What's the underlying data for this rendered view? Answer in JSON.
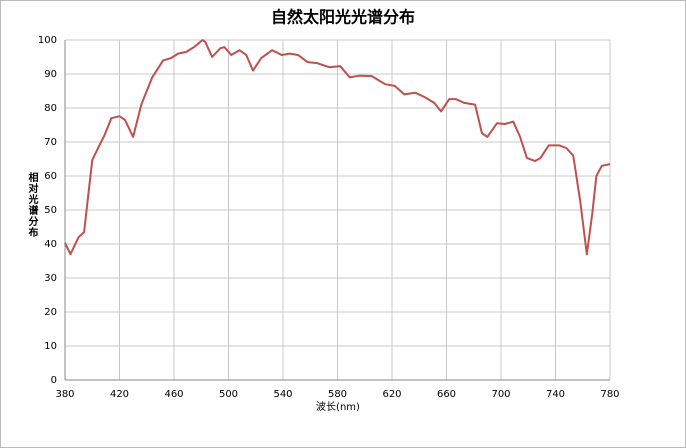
{
  "chart_data": {
    "type": "line",
    "title": "自然太阳光光谱分布",
    "x_label": "波长(nm)",
    "y_label": "相对光谱分布",
    "x": [
      380,
      384,
      390,
      394,
      400,
      404,
      409,
      414,
      420,
      424,
      430,
      436,
      444,
      452,
      458,
      463,
      469,
      475,
      481,
      483,
      488,
      494,
      497,
      502,
      508,
      513,
      518,
      524,
      532,
      539,
      545,
      551,
      558,
      565,
      574,
      582,
      589,
      596,
      605,
      615,
      622,
      629,
      637,
      644,
      651,
      656,
      662,
      667,
      673,
      681,
      686,
      690,
      697,
      703,
      709,
      714,
      719,
      725,
      729,
      735,
      743,
      748,
      753,
      758,
      763,
      767,
      770,
      774,
      780
    ],
    "series": [
      {
        "name": "相对光谱分布",
        "color": "#c0504d",
        "values": [
          40.3,
          37,
          42,
          43.5,
          64.7,
          68,
          72,
          77,
          77.6,
          76.5,
          71.5,
          81,
          89,
          94,
          94.7,
          96,
          96.5,
          98,
          100,
          99.4,
          95,
          97.6,
          97.9,
          95.6,
          97,
          95.6,
          91,
          94.7,
          97,
          95.6,
          96,
          95.6,
          93.5,
          93.2,
          92,
          92.3,
          89,
          89.5,
          89.4,
          87,
          86.5,
          84,
          84.5,
          83.2,
          81.5,
          79,
          82.6,
          82.6,
          81.5,
          81,
          72.6,
          71.5,
          75.5,
          75.3,
          76,
          71.5,
          65.3,
          64.4,
          65.3,
          69,
          69,
          68.2,
          66,
          53,
          37,
          49,
          60,
          63,
          63.5
        ]
      }
    ],
    "xlim": [
      380,
      780
    ],
    "xticks": [
      380,
      420,
      460,
      500,
      540,
      580,
      620,
      660,
      700,
      740,
      780
    ],
    "ylim": [
      0,
      100
    ],
    "yticks": [
      0,
      10,
      20,
      30,
      40,
      50,
      60,
      70,
      80,
      90,
      100
    ],
    "grid": true
  }
}
